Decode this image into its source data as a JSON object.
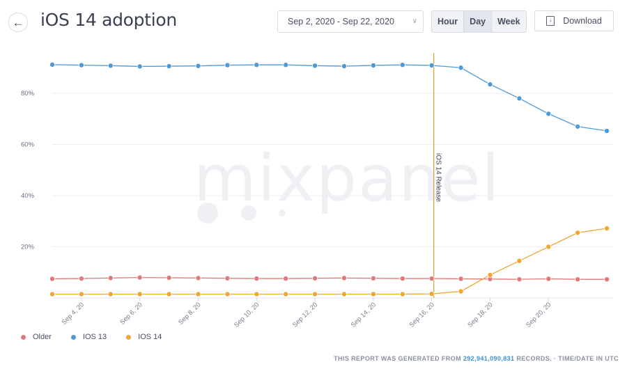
{
  "header": {
    "title": "iOS 14 adoption",
    "back_icon": "arrow-left-icon",
    "date_range": "Sep 2, 2020 - Sep 22, 2020",
    "granularity": [
      "Hour",
      "Day",
      "Week"
    ],
    "granularity_selected": "Day",
    "download_label": "Download"
  },
  "watermark": "mixpanel",
  "footer": {
    "prefix": "THIS REPORT WAS GENERATED FROM",
    "records": "292,941,090,831",
    "suffix": "RECORDS. · TIME/DATE IN UTC"
  },
  "chart_data": {
    "type": "line",
    "title": "",
    "xlabel": "",
    "ylabel": "",
    "x": [
      "Sep 3, 20",
      "Sep 4, 20",
      "Sep 5, 20",
      "Sep 6, 20",
      "Sep 7, 20",
      "Sep 8, 20",
      "Sep 9, 20",
      "Sep 10, 20",
      "Sep 11, 20",
      "Sep 12, 20",
      "Sep 13, 20",
      "Sep 14, 20",
      "Sep 15, 20",
      "Sep 16, 20",
      "Sep 17, 20",
      "Sep 18, 20",
      "Sep 19, 20",
      "Sep 20, 20",
      "Sep 21, 20",
      "Sep 22, 20"
    ],
    "x_tick_labels": [
      "Sep 4, 20",
      "Sep 6, 20",
      "Sep 8, 20",
      "Sep 10, 20",
      "Sep 12, 20",
      "Sep 14, 20",
      "Sep 16, 20",
      "Sep 18, 20",
      "Sep 20, 20"
    ],
    "y_tick_labels": [
      "80%",
      "60%",
      "40%",
      "20%"
    ],
    "y_ticks": [
      80,
      60,
      40,
      20
    ],
    "ylim": [
      0,
      100
    ],
    "grid": true,
    "legend_position": "bottom-left",
    "series": [
      {
        "name": "Older",
        "color": "#e07a7a",
        "values": [
          7.5,
          7.6,
          7.8,
          8.0,
          7.9,
          7.8,
          7.7,
          7.6,
          7.6,
          7.7,
          7.8,
          7.7,
          7.6,
          7.6,
          7.5,
          7.4,
          7.3,
          7.5,
          7.3,
          7.3
        ]
      },
      {
        "name": "IOS 13",
        "color": "#4f9ad6",
        "values": [
          91.2,
          91.0,
          90.8,
          90.5,
          90.6,
          90.7,
          91.0,
          91.1,
          91.1,
          90.8,
          90.6,
          90.9,
          91.1,
          90.9,
          90.0,
          83.5,
          78.0,
          72.0,
          67.0,
          65.3
        ]
      },
      {
        "name": "IOS 14",
        "color": "#f0a632",
        "values": [
          1.5,
          1.5,
          1.5,
          1.5,
          1.5,
          1.5,
          1.5,
          1.5,
          1.5,
          1.5,
          1.5,
          1.5,
          1.5,
          1.6,
          2.6,
          9.0,
          14.5,
          20.0,
          25.5,
          27.2
        ]
      }
    ],
    "annotations": [
      {
        "x": "Sep 16, 20",
        "label": "iOS 14 Release",
        "color": "#c9a23a"
      }
    ]
  }
}
